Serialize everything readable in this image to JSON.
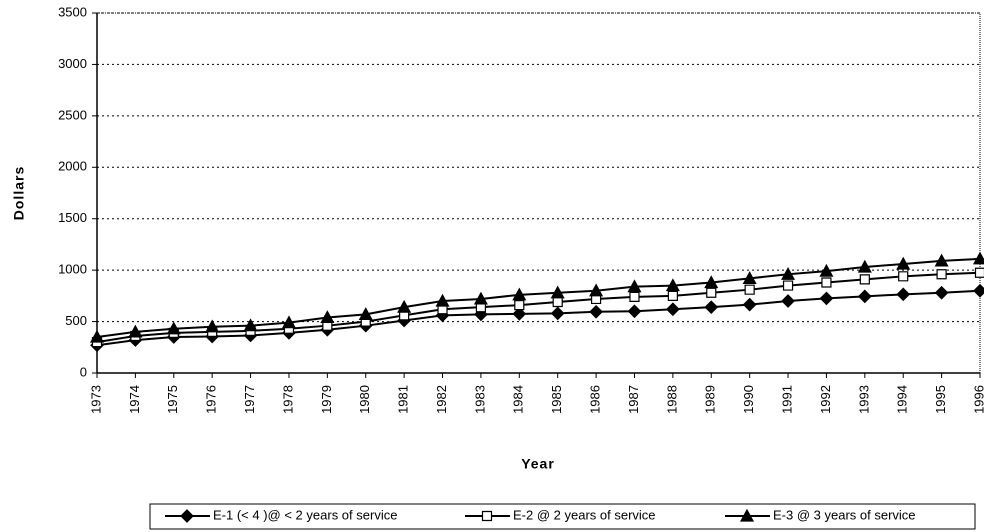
{
  "chart_data": {
    "type": "line",
    "x_label": "Year",
    "y_label": "Dollars",
    "categories": [
      "1973",
      "1974",
      "1975",
      "1976",
      "1977",
      "1978",
      "1979",
      "1980",
      "1981",
      "1982",
      "1983",
      "1984",
      "1985",
      "1986",
      "1987",
      "1988",
      "1989",
      "1990",
      "1991",
      "1992",
      "1993",
      "1994",
      "1995",
      "1996"
    ],
    "series": [
      {
        "name": "E-1 (< 4 )@ < 2 years of service",
        "color": "#000000",
        "marker": "diamond",
        "values": [
          270,
          320,
          350,
          355,
          365,
          390,
          420,
          460,
          510,
          560,
          570,
          575,
          580,
          595,
          600,
          620,
          640,
          665,
          700,
          725,
          745,
          765,
          780,
          800
        ]
      },
      {
        "name": "E-2 @ 2 years of service",
        "color": "#000000",
        "marker": "square",
        "values": [
          300,
          360,
          390,
          400,
          410,
          430,
          460,
          500,
          560,
          620,
          640,
          660,
          690,
          720,
          740,
          750,
          780,
          810,
          850,
          880,
          910,
          940,
          960,
          975
        ]
      },
      {
        "name": "E-3 @ 3 years of service",
        "color": "#000000",
        "marker": "triangle",
        "values": [
          350,
          400,
          430,
          450,
          460,
          490,
          540,
          570,
          640,
          700,
          720,
          760,
          780,
          800,
          840,
          850,
          880,
          920,
          960,
          990,
          1030,
          1060,
          1090,
          1110
        ]
      }
    ],
    "ylim": [
      0,
      3500
    ],
    "yticks": [
      0,
      500,
      1000,
      1500,
      2000,
      2500,
      3000,
      3500
    ],
    "grid": true,
    "legend": "bottom"
  }
}
